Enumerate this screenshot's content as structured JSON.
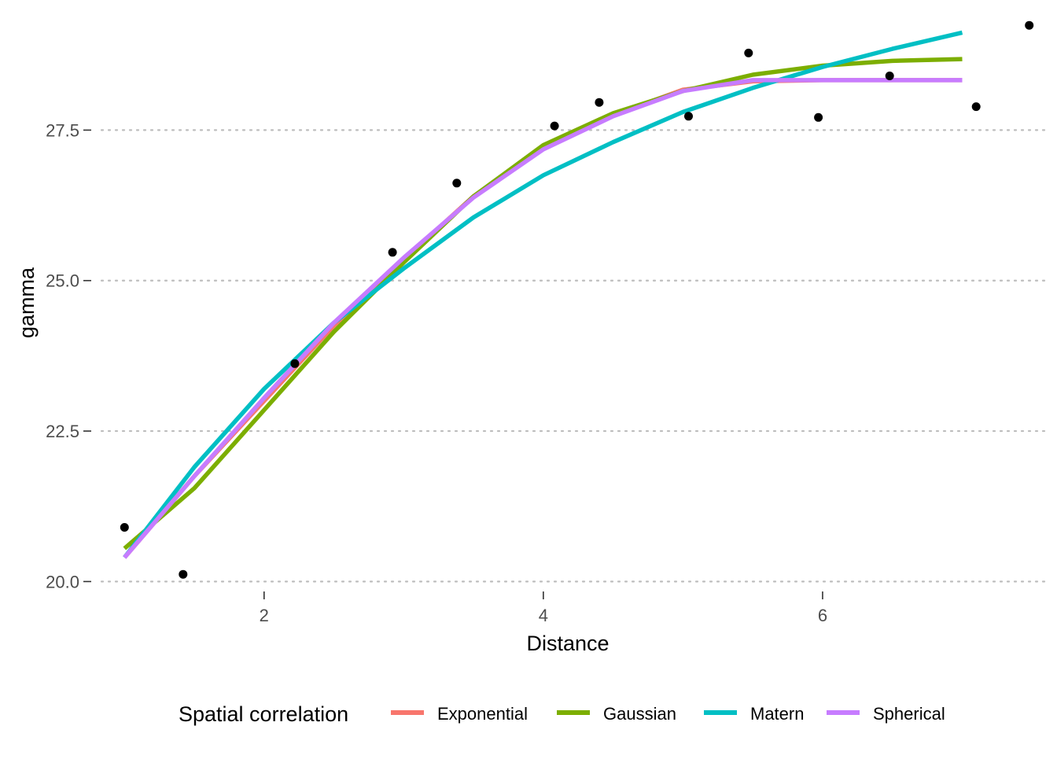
{
  "chart_data": {
    "type": "line",
    "title": "",
    "xlabel": "Distance",
    "ylabel": "gamma",
    "xlim": [
      0.7,
      7.6
    ],
    "ylim": [
      19.6,
      29.4
    ],
    "grid": "horizontal dotted",
    "x_ticks": [
      {
        "value": 2,
        "label": "2"
      },
      {
        "value": 4,
        "label": "4"
      },
      {
        "value": 6,
        "label": "6"
      }
    ],
    "y_ticks": [
      {
        "value": 20.0,
        "label": "20.0"
      },
      {
        "value": 22.5,
        "label": "22.5"
      },
      {
        "value": 25.0,
        "label": "25.0"
      },
      {
        "value": 27.5,
        "label": "27.5"
      }
    ],
    "legend": {
      "title": "Spatial correlation",
      "position": "bottom"
    },
    "points": [
      {
        "x": 1.0,
        "y": 20.9
      },
      {
        "x": 1.42,
        "y": 20.12
      },
      {
        "x": 2.22,
        "y": 23.62
      },
      {
        "x": 2.92,
        "y": 25.47
      },
      {
        "x": 3.38,
        "y": 26.62
      },
      {
        "x": 4.08,
        "y": 27.57
      },
      {
        "x": 4.4,
        "y": 27.96
      },
      {
        "x": 5.04,
        "y": 27.73
      },
      {
        "x": 5.47,
        "y": 28.78
      },
      {
        "x": 5.97,
        "y": 27.71
      },
      {
        "x": 6.48,
        "y": 28.4
      },
      {
        "x": 7.1,
        "y": 27.89
      },
      {
        "x": 7.48,
        "y": 29.24
      }
    ],
    "series": [
      {
        "name": "Exponential",
        "color": "#F8766D",
        "x": [
          1.0,
          1.5,
          2.0,
          2.5,
          3.0,
          3.5,
          4.0,
          4.5,
          5.0,
          5.5,
          6.0,
          6.5,
          7.0
        ],
        "y": [
          20.4,
          21.75,
          23.0,
          24.25,
          25.35,
          26.4,
          27.2,
          27.75,
          28.17,
          28.31,
          28.33,
          28.33,
          28.33
        ]
      },
      {
        "name": "Gaussian",
        "color": "#7CAE00",
        "x": [
          1.0,
          1.5,
          2.0,
          2.5,
          3.0,
          3.5,
          4.0,
          4.5,
          5.0,
          5.5,
          6.0,
          6.5,
          7.0
        ],
        "y": [
          20.55,
          21.55,
          22.85,
          24.15,
          25.3,
          26.4,
          27.25,
          27.78,
          28.15,
          28.42,
          28.57,
          28.65,
          28.68
        ]
      },
      {
        "name": "Matern",
        "color": "#00BFC4",
        "x": [
          1.0,
          1.5,
          2.0,
          2.5,
          3.0,
          3.5,
          4.0,
          4.5,
          5.0,
          5.5,
          6.0,
          6.5,
          7.0
        ],
        "y": [
          20.4,
          21.9,
          23.2,
          24.3,
          25.2,
          26.05,
          26.75,
          27.3,
          27.8,
          28.2,
          28.55,
          28.85,
          29.12
        ]
      },
      {
        "name": "Spherical",
        "color": "#C77CFF",
        "x": [
          1.0,
          1.5,
          2.0,
          2.5,
          3.0,
          3.5,
          4.0,
          4.5,
          5.0,
          5.5,
          6.0,
          6.5,
          7.0
        ],
        "y": [
          20.4,
          21.75,
          23.05,
          24.3,
          25.38,
          26.38,
          27.18,
          27.73,
          28.15,
          28.33,
          28.33,
          28.33,
          28.33
        ]
      }
    ]
  }
}
